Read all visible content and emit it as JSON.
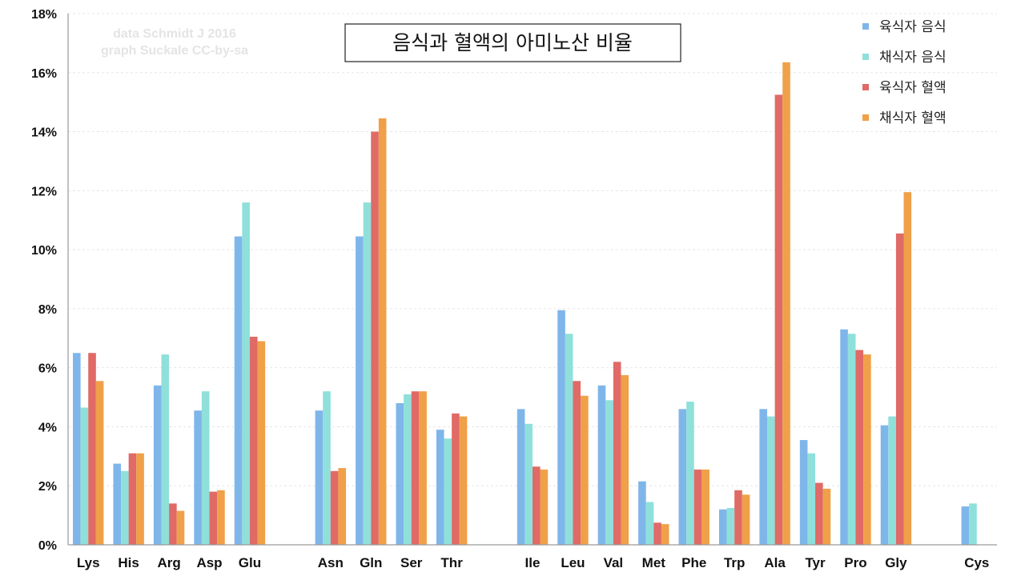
{
  "chart_data": {
    "type": "bar",
    "title": "음식과 혈액의 아미노산 비율",
    "credit": [
      "data Schmidt J 2016",
      "graph Suckale CC-by-sa"
    ],
    "xlabel": "",
    "ylabel": "",
    "ylim": [
      0,
      18
    ],
    "y_ticks": [
      "0%",
      "2%",
      "4%",
      "6%",
      "8%",
      "10%",
      "12%",
      "14%",
      "16%",
      "18%"
    ],
    "y_tick_values": [
      0,
      2,
      4,
      6,
      8,
      10,
      12,
      14,
      16,
      18
    ],
    "grid": true,
    "legend_position": "top-right",
    "categories": [
      "Lys",
      "His",
      "Arg",
      "Asp",
      "Glu",
      "",
      "Asn",
      "Gln",
      "Ser",
      "Thr",
      "",
      "Ile",
      "Leu",
      "Val",
      "Met",
      "Phe",
      "Trp",
      "Ala",
      "Tyr",
      "Pro",
      "Gly",
      "",
      "Cys"
    ],
    "series": [
      {
        "name": "육식자 음식",
        "color": "#7fb6ea",
        "values": [
          6.5,
          2.75,
          5.4,
          4.55,
          10.45,
          null,
          4.55,
          10.45,
          4.8,
          3.9,
          null,
          4.6,
          7.95,
          5.4,
          2.15,
          4.6,
          1.2,
          4.6,
          3.55,
          7.3,
          4.05,
          null,
          1.3
        ]
      },
      {
        "name": "채식자 음식",
        "color": "#8fe0da",
        "values": [
          4.65,
          2.5,
          6.45,
          5.2,
          11.6,
          null,
          5.2,
          11.6,
          5.1,
          3.6,
          null,
          4.1,
          7.15,
          4.9,
          1.45,
          4.85,
          1.25,
          4.35,
          3.1,
          7.15,
          4.35,
          null,
          1.4
        ]
      },
      {
        "name": "육식자 혈액",
        "color": "#e06a66",
        "values": [
          6.5,
          3.1,
          1.4,
          1.8,
          7.05,
          null,
          2.5,
          14.0,
          5.2,
          4.45,
          null,
          2.65,
          5.55,
          6.2,
          0.75,
          2.55,
          1.85,
          15.25,
          2.1,
          6.6,
          10.55,
          null,
          null
        ]
      },
      {
        "name": "채식자 혈액",
        "color": "#f0a048",
        "values": [
          5.55,
          3.1,
          1.15,
          1.85,
          6.9,
          null,
          2.6,
          14.45,
          5.2,
          4.35,
          null,
          2.55,
          5.05,
          5.75,
          0.7,
          2.55,
          1.7,
          16.35,
          1.9,
          6.45,
          11.95,
          null,
          null
        ]
      }
    ]
  }
}
